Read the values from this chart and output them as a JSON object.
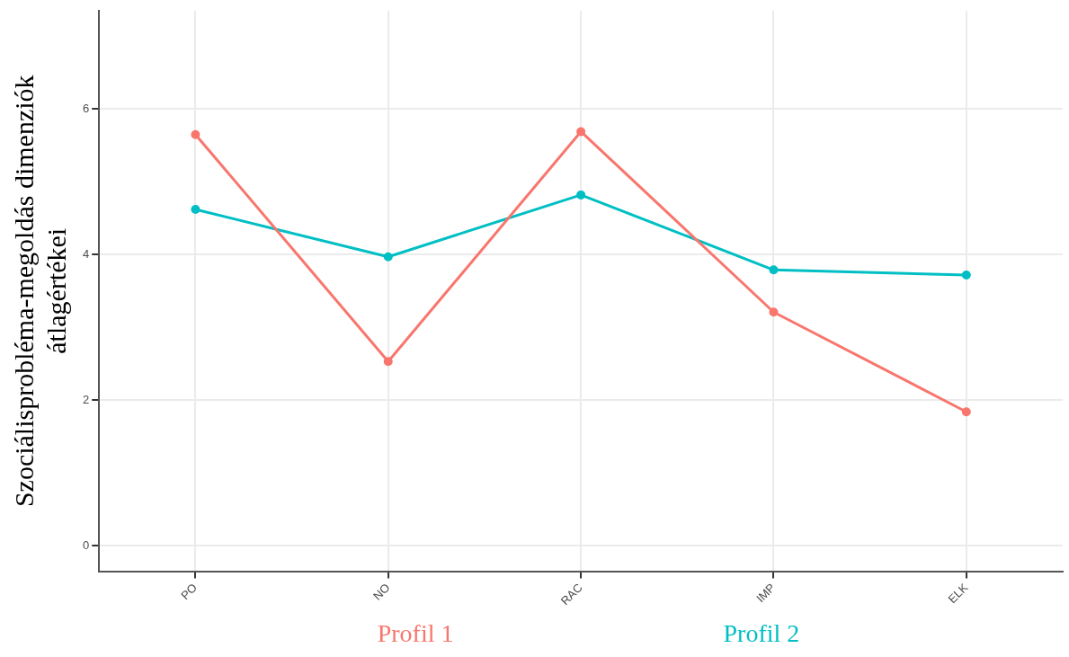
{
  "chart_data": {
    "type": "line",
    "ylabel": "Szociálisprobléma-megoldás dimenziók átlagértékei",
    "categories": [
      "PO",
      "NO",
      "RAC",
      "IMP",
      "ELK"
    ],
    "series": [
      {
        "name": "Profil 1",
        "color": "#f8766d",
        "values": [
          5.65,
          2.53,
          5.69,
          3.21,
          1.84
        ]
      },
      {
        "name": "Profil 2",
        "color": "#00bfc4",
        "values": [
          4.62,
          3.97,
          4.82,
          3.79,
          3.72
        ]
      }
    ],
    "ylim": [
      -0.35,
      7.35
    ],
    "yticks": [
      0,
      2,
      4,
      6
    ],
    "grid": true,
    "legend": "bottom",
    "marker": "circle",
    "line_style": "solid"
  }
}
